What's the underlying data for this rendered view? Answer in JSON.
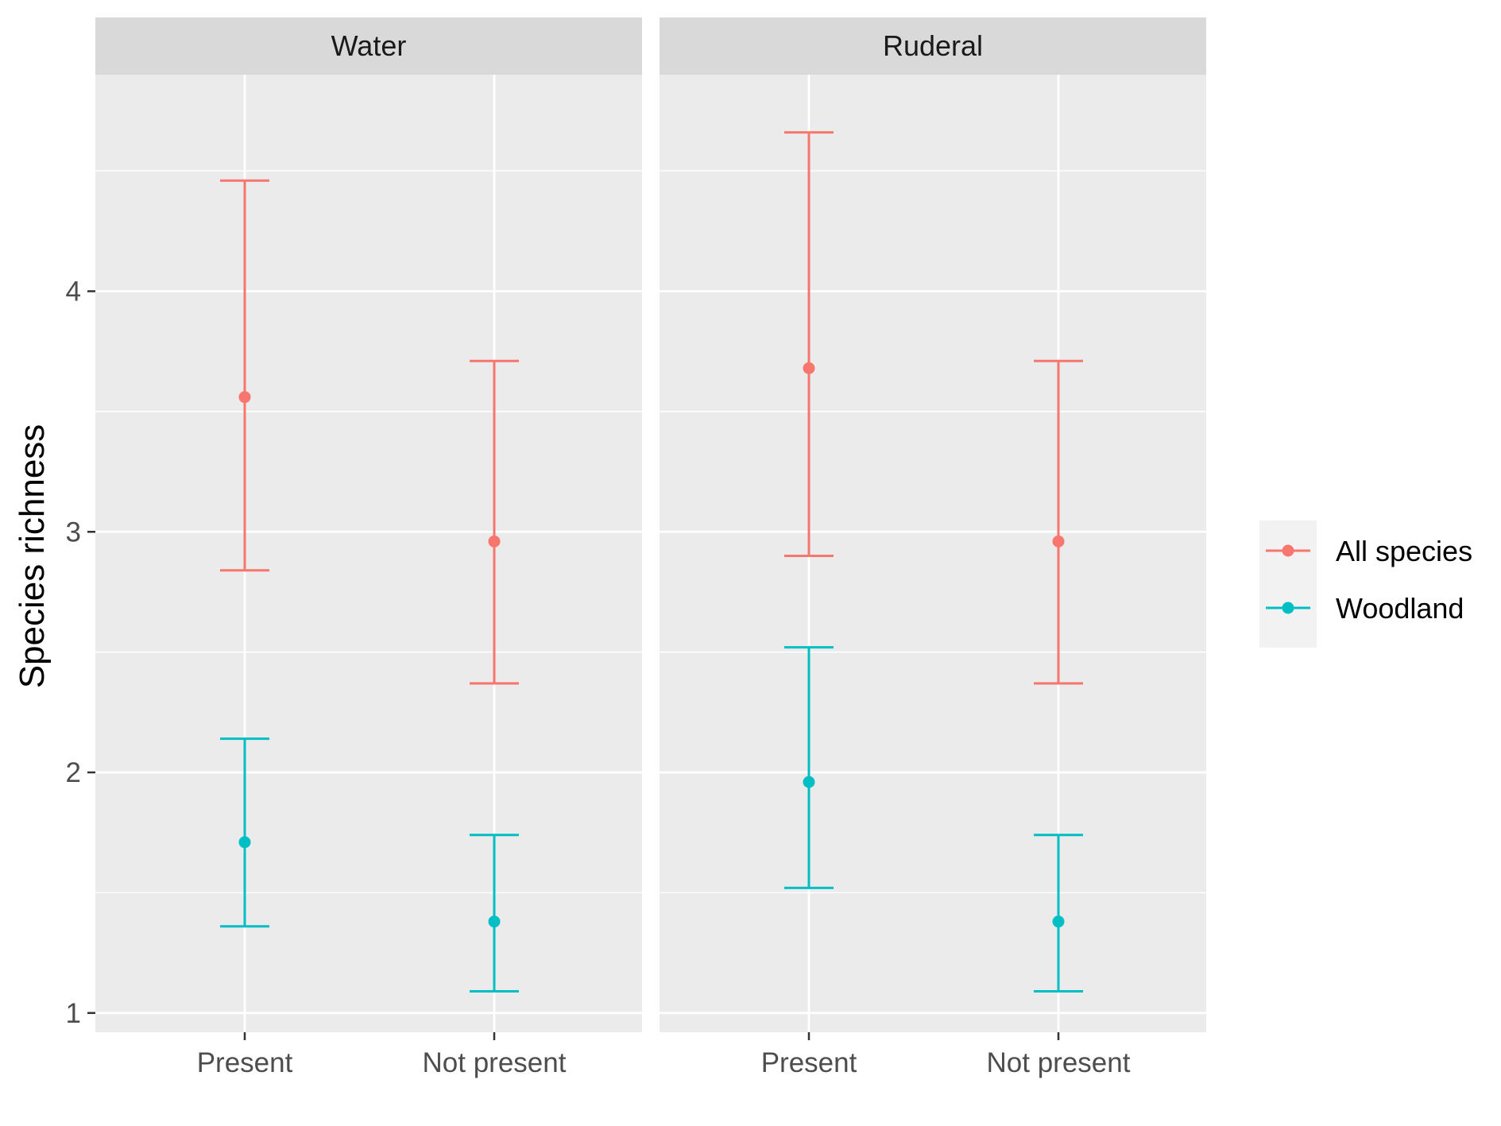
{
  "chart_data": {
    "type": "errorbar",
    "ylabel": "Species richness",
    "xlabel": "",
    "ylim": [
      0.92,
      4.9
    ],
    "yticks": [
      1,
      2,
      3,
      4
    ],
    "grid": true,
    "legend_position": "right",
    "categories": [
      "Present",
      "Not present"
    ],
    "series": [
      {
        "name": "All species",
        "color": "#F8766D"
      },
      {
        "name": "Woodland",
        "color": "#00BFC4"
      }
    ],
    "panels": [
      {
        "title": "Water",
        "points": [
          {
            "category": "Present",
            "series": "All species",
            "y": 3.56,
            "ymin": 2.84,
            "ymax": 4.46
          },
          {
            "category": "Not present",
            "series": "All species",
            "y": 2.96,
            "ymin": 2.37,
            "ymax": 3.71
          },
          {
            "category": "Present",
            "series": "Woodland",
            "y": 1.71,
            "ymin": 1.36,
            "ymax": 2.14
          },
          {
            "category": "Not present",
            "series": "Woodland",
            "y": 1.38,
            "ymin": 1.09,
            "ymax": 1.74
          }
        ]
      },
      {
        "title": "Ruderal",
        "points": [
          {
            "category": "Present",
            "series": "All species",
            "y": 3.68,
            "ymin": 2.9,
            "ymax": 4.66
          },
          {
            "category": "Not present",
            "series": "All species",
            "y": 2.96,
            "ymin": 2.37,
            "ymax": 3.71
          },
          {
            "category": "Present",
            "series": "Woodland",
            "y": 1.96,
            "ymin": 1.52,
            "ymax": 2.52
          },
          {
            "category": "Not present",
            "series": "Woodland",
            "y": 1.38,
            "ymin": 1.09,
            "ymax": 1.74
          }
        ]
      }
    ]
  }
}
